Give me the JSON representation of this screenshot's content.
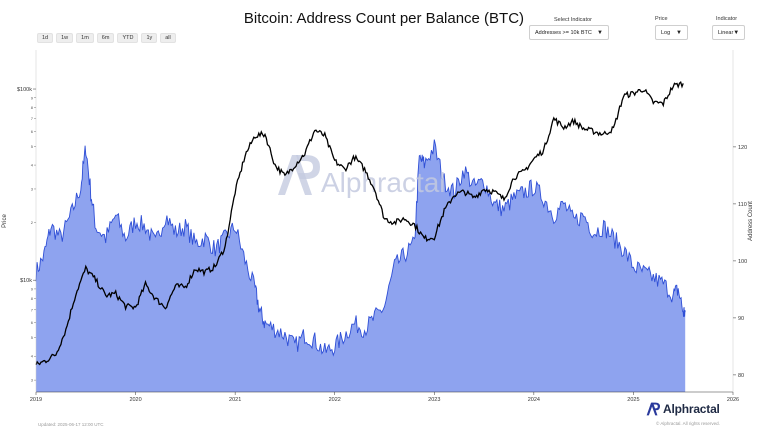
{
  "title": "Bitcoin: Address Count per Balance (BTC)",
  "range_buttons": [
    "1d",
    "1w",
    "1m",
    "6m",
    "YTD",
    "1y",
    "all"
  ],
  "controls": {
    "indicator_label": "Select Indicator",
    "indicator_value": "Addresses >= 10k BTC",
    "price_label": "Price",
    "price_value": "Log",
    "indicator_scale_label": "Indicator",
    "indicator_scale_value": "Linear"
  },
  "watermark": "Alphractal",
  "brand": "Alphractal",
  "footer": {
    "left": "Updated: 2025-06-17 12:00 UTC",
    "right": "© Alphractal. All rights reserved."
  },
  "colors": {
    "area_fill": "#8ea3ef",
    "area_line": "#2f4fd6",
    "price_line": "#000000",
    "watermark": "#c4cae0",
    "brand": "#2a3a9c"
  },
  "chart_data": {
    "type": "area",
    "title": "Bitcoin: Address Count per Balance (BTC)",
    "xlabel": "",
    "ylabel_left": "Price",
    "ylabel_right": "Address Count",
    "x_range": [
      2019.0,
      2026.0
    ],
    "x_ticks": [
      2019,
      2020,
      2021,
      2022,
      2023,
      2024,
      2025,
      2026
    ],
    "x_tick_labels": [
      "2019",
      "2020",
      "2021",
      "2022",
      "2023",
      "2024",
      "2025",
      "2026"
    ],
    "y_left_scale": "log",
    "y_left_range": [
      2600,
      160000
    ],
    "y_left_major_ticks": [
      10000,
      100000
    ],
    "y_left_major_labels": [
      "$10k",
      "$100k"
    ],
    "y_left_minor_ticks": [
      3000,
      4000,
      5000,
      6000,
      7000,
      8000,
      9000,
      20000,
      30000,
      40000,
      50000,
      60000,
      70000,
      80000,
      90000
    ],
    "y_left_minor_labels": [
      "3",
      "4",
      "5",
      "6",
      "7",
      "8",
      "9",
      "2",
      "3",
      "4",
      "5",
      "6",
      "7",
      "8",
      "9"
    ],
    "y_right_range": [
      77,
      137
    ],
    "y_right_ticks": [
      80,
      90,
      100,
      110,
      120
    ],
    "y_right_tick_labels": [
      "80",
      "90",
      "100",
      "110",
      "120"
    ],
    "series": [
      {
        "name": "Addresses >= 10k BTC",
        "axis": "right",
        "style": "area",
        "x": [
          2019.0,
          2019.08,
          2019.15,
          2019.25,
          2019.35,
          2019.45,
          2019.5,
          2019.55,
          2019.6,
          2019.7,
          2019.8,
          2019.9,
          2020.0,
          2020.1,
          2020.2,
          2020.3,
          2020.4,
          2020.5,
          2020.6,
          2020.7,
          2020.8,
          2020.9,
          2021.0,
          2021.1,
          2021.2,
          2021.25,
          2021.3,
          2021.4,
          2021.5,
          2021.6,
          2021.7,
          2021.8,
          2021.9,
          2022.0,
          2022.1,
          2022.2,
          2022.3,
          2022.4,
          2022.5,
          2022.6,
          2022.7,
          2022.8,
          2022.85,
          2022.9,
          2023.0,
          2023.1,
          2023.2,
          2023.3,
          2023.4,
          2023.5,
          2023.6,
          2023.7,
          2023.8,
          2023.9,
          2024.0,
          2024.1,
          2024.2,
          2024.3,
          2024.4,
          2024.5,
          2024.6,
          2024.7,
          2024.8,
          2024.9,
          2025.0,
          2025.1,
          2025.2,
          2025.3,
          2025.4,
          2025.45,
          2025.5,
          2025.52
        ],
        "values": [
          98,
          101,
          106,
          104,
          108,
          113,
          120,
          112,
          106,
          104,
          108,
          104,
          107,
          106,
          103,
          108,
          105,
          106,
          103,
          104,
          102,
          104,
          106,
          100,
          95,
          91,
          89,
          88,
          87,
          85,
          87,
          86,
          84,
          85,
          87,
          89,
          88,
          90,
          92,
          99,
          101,
          103,
          118,
          117,
          120,
          114,
          112,
          116,
          113,
          114,
          110,
          109,
          111,
          112,
          113,
          111,
          108,
          110,
          107,
          108,
          105,
          106,
          104,
          102,
          99,
          98,
          97,
          96,
          94,
          95,
          91,
          91
        ]
      },
      {
        "name": "BTC Price",
        "axis": "left",
        "style": "line",
        "x": [
          2019.0,
          2019.1,
          2019.2,
          2019.3,
          2019.4,
          2019.5,
          2019.6,
          2019.7,
          2019.8,
          2019.9,
          2020.0,
          2020.1,
          2020.2,
          2020.3,
          2020.4,
          2020.5,
          2020.6,
          2020.7,
          2020.8,
          2020.9,
          2021.0,
          2021.1,
          2021.2,
          2021.3,
          2021.4,
          2021.5,
          2021.6,
          2021.7,
          2021.8,
          2021.9,
          2022.0,
          2022.1,
          2022.2,
          2022.3,
          2022.4,
          2022.5,
          2022.6,
          2022.7,
          2022.8,
          2022.9,
          2023.0,
          2023.1,
          2023.2,
          2023.3,
          2023.4,
          2023.5,
          2023.6,
          2023.7,
          2023.8,
          2023.9,
          2024.0,
          2024.1,
          2024.2,
          2024.3,
          2024.4,
          2024.5,
          2024.6,
          2024.7,
          2024.8,
          2024.9,
          2025.0,
          2025.1,
          2025.2,
          2025.3,
          2025.4,
          2025.5
        ],
        "values": [
          3600,
          3800,
          4100,
          5500,
          8500,
          11500,
          10000,
          8300,
          8500,
          7300,
          7200,
          9500,
          8000,
          7200,
          9300,
          9200,
          11500,
          11000,
          11800,
          15000,
          29000,
          45000,
          57000,
          58000,
          40000,
          35000,
          40000,
          46000,
          61000,
          57000,
          42000,
          38000,
          44000,
          38000,
          30000,
          21000,
          20000,
          21000,
          19500,
          16500,
          16800,
          23000,
          28000,
          29000,
          27000,
          30000,
          29000,
          26500,
          34500,
          37000,
          43000,
          48000,
          70000,
          63000,
          68000,
          62000,
          60000,
          58000,
          62000,
          92000,
          95000,
          100000,
          85000,
          84000,
          104000,
          107000
        ]
      }
    ]
  }
}
